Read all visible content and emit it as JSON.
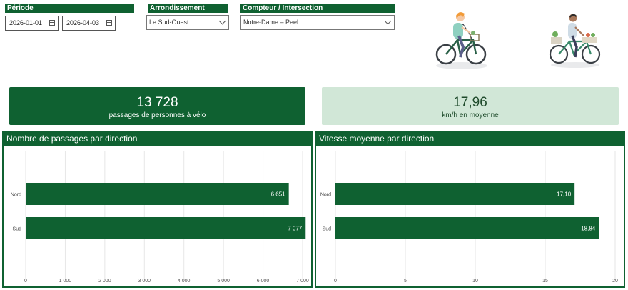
{
  "filters": {
    "periode": {
      "label": "Période",
      "start": "2026-01-01",
      "end": "2026-04-03"
    },
    "arrondissement": {
      "label": "Arrondissement",
      "value": "Le Sud-Ouest"
    },
    "compteur": {
      "label": "Compteur / Intersection",
      "value": "Notre-Dame – Peel"
    }
  },
  "kpis": {
    "passages": {
      "value": "13 728",
      "caption": "passages de personnes à vélo"
    },
    "vitesse": {
      "value": "17,96",
      "caption": "km/h en moyenne"
    }
  },
  "colors": {
    "brand": "#0f6131",
    "light": "#d1e7d7"
  },
  "chart_data": [
    {
      "type": "bar",
      "orientation": "horizontal",
      "title": "Nombre de passages par direction",
      "categories": [
        "Nord",
        "Sud"
      ],
      "values": [
        6651,
        7077
      ],
      "value_labels": [
        "6 651",
        "7 077"
      ],
      "xlim": [
        0,
        7000
      ],
      "ticks": [
        0,
        1000,
        2000,
        3000,
        4000,
        5000,
        6000,
        7000
      ],
      "tick_labels": [
        "0",
        "1 000",
        "2 000",
        "3 000",
        "4 000",
        "5 000",
        "6 000",
        "7 000"
      ],
      "grid": true
    },
    {
      "type": "bar",
      "orientation": "horizontal",
      "title": "Vitesse moyenne par direction",
      "categories": [
        "Nord",
        "Sud"
      ],
      "values": [
        17.1,
        18.84
      ],
      "value_labels": [
        "17,10",
        "18,84"
      ],
      "xlim": [
        0,
        20
      ],
      "ticks": [
        0,
        5,
        10,
        15,
        20
      ],
      "tick_labels": [
        "0",
        "5",
        "10",
        "15",
        "20"
      ],
      "grid": true
    }
  ]
}
